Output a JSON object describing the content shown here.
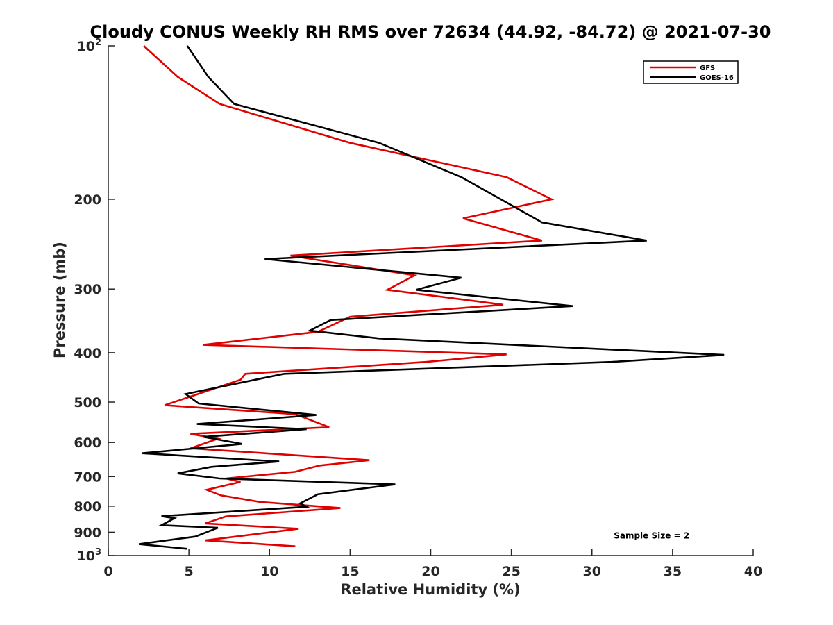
{
  "chart_data": {
    "type": "line",
    "title": "Cloudy CONUS Weekly RH RMS over 72634 (44.92, -84.72) @ 2021-07-30",
    "xlabel": "Relative Humidity (%)",
    "ylabel": "Pressure (mb)",
    "xlim": [
      0,
      40
    ],
    "ylim": [
      100,
      1000
    ],
    "y_scale": "log",
    "y_reversed": true,
    "x_ticks": [
      0,
      5,
      10,
      15,
      20,
      25,
      30,
      35,
      40
    ],
    "x_tick_labels": [
      "0",
      "5",
      "10",
      "15",
      "20",
      "25",
      "30",
      "35",
      "40"
    ],
    "y_ticks": [
      100,
      200,
      300,
      400,
      500,
      600,
      700,
      800,
      900,
      1000
    ],
    "y_tick_labels": [
      {
        "base": "10",
        "exp": "2"
      },
      {
        "base": "200",
        "exp": ""
      },
      {
        "base": "300",
        "exp": ""
      },
      {
        "base": "400",
        "exp": ""
      },
      {
        "base": "500",
        "exp": ""
      },
      {
        "base": "600",
        "exp": ""
      },
      {
        "base": "700",
        "exp": ""
      },
      {
        "base": "800",
        "exp": ""
      },
      {
        "base": "900",
        "exp": ""
      },
      {
        "base": "10",
        "exp": "3"
      }
    ],
    "grid": false,
    "legend_position": "top-right",
    "series": [
      {
        "name": "GFS",
        "color": "#e00000",
        "points": [
          [
            2.2,
            100
          ],
          [
            4.3,
            115
          ],
          [
            6.9,
            130
          ],
          [
            15,
            155
          ],
          [
            24.7,
            181
          ],
          [
            27.5,
            200
          ],
          [
            22,
            218
          ],
          [
            26.9,
            241
          ],
          [
            11.3,
            258
          ],
          [
            19,
            282
          ],
          [
            17.3,
            301
          ],
          [
            24.5,
            322
          ],
          [
            15,
            340
          ],
          [
            13,
            364
          ],
          [
            5.9,
            386
          ],
          [
            24.7,
            403
          ],
          [
            19.7,
            417
          ],
          [
            8.5,
            440
          ],
          [
            8.2,
            452
          ],
          [
            3.5,
            507
          ],
          [
            11.6,
            528
          ],
          [
            13.7,
            560
          ],
          [
            5.1,
            577
          ],
          [
            6.8,
            590
          ],
          [
            5.1,
            616
          ],
          [
            16.2,
            650
          ],
          [
            13.1,
            666
          ],
          [
            11.6,
            685
          ],
          [
            7.3,
            706
          ],
          [
            8.2,
            717
          ],
          [
            6.1,
            743
          ],
          [
            7,
            762
          ],
          [
            9.4,
            785
          ],
          [
            14.4,
            807
          ],
          [
            7.3,
            838
          ],
          [
            6,
            865
          ],
          [
            11.8,
            886
          ],
          [
            6,
            934
          ],
          [
            11.6,
            959
          ]
        ]
      },
      {
        "name": "GOES-16",
        "color": "#000000",
        "points": [
          [
            4.9,
            100
          ],
          [
            6.2,
            115
          ],
          [
            7.8,
            130
          ],
          [
            16.8,
            155
          ],
          [
            21.9,
            181
          ],
          [
            26.9,
            222
          ],
          [
            33.4,
            241
          ],
          [
            9.7,
            262
          ],
          [
            21.9,
            285
          ],
          [
            19.1,
            301
          ],
          [
            28.8,
            324
          ],
          [
            13.8,
            345
          ],
          [
            12.5,
            362
          ],
          [
            16.8,
            375
          ],
          [
            38.2,
            404
          ],
          [
            31.2,
            417
          ],
          [
            10.9,
            440
          ],
          [
            4.8,
            482
          ],
          [
            5.6,
            503
          ],
          [
            12.9,
            530
          ],
          [
            5.5,
            552
          ],
          [
            12.3,
            565
          ],
          [
            5.9,
            585
          ],
          [
            8.3,
            604
          ],
          [
            2.1,
            630
          ],
          [
            10.6,
            654
          ],
          [
            6.4,
            670
          ],
          [
            4.3,
            690
          ],
          [
            6.9,
            706
          ],
          [
            17.8,
            725
          ],
          [
            13,
            758
          ],
          [
            11.9,
            790
          ],
          [
            12.3,
            802
          ],
          [
            3.3,
            837
          ],
          [
            4.1,
            845
          ],
          [
            3.3,
            872
          ],
          [
            6.8,
            882
          ],
          [
            5.4,
            918
          ],
          [
            1.9,
            950
          ],
          [
            4.9,
            970
          ]
        ]
      }
    ],
    "annotations": [
      {
        "text": "Sample Size = 2",
        "x": 33.7,
        "y": 915
      }
    ]
  }
}
